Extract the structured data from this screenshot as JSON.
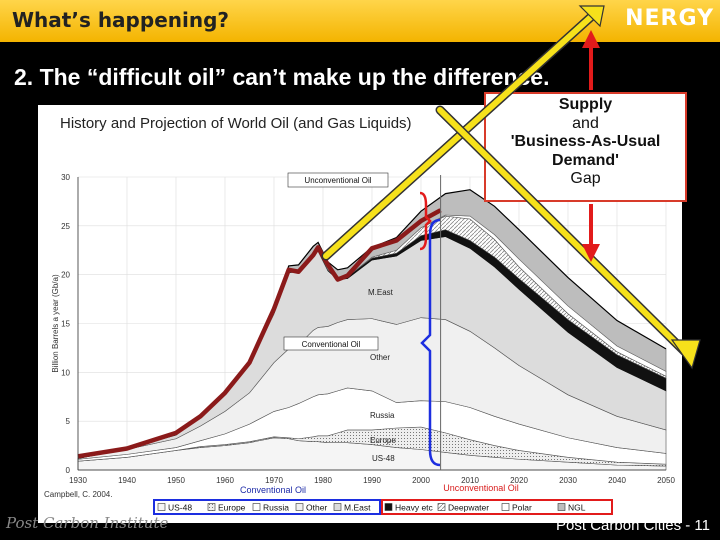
{
  "header": {
    "title": "What’s happening?",
    "brand": "NERGY"
  },
  "slide": {
    "subtitle": "2. The “difficult oil” can’t make up the difference."
  },
  "callout": {
    "line1": "Supply",
    "line2": "and",
    "line3": "'Business-As-Usual",
    "line4": "Demand'",
    "line5": "Gap"
  },
  "footer": {
    "left": "Post Carbon Institute",
    "right": "Post Carbon Cities - 11"
  },
  "chart_data": {
    "type": "area",
    "title": "History and Projection of World Oil (and Gas Liquids)",
    "ylabel": "Billion Barrels a year (Gb/a)",
    "xlim": [
      1930,
      2050
    ],
    "ylim": [
      0,
      30
    ],
    "x_ticks": [
      1930,
      1940,
      1950,
      1960,
      1970,
      1980,
      1990,
      2000,
      2010,
      2020,
      2030,
      2040,
      2050
    ],
    "y_ticks": [
      0,
      5,
      10,
      15,
      20,
      25,
      30
    ],
    "source": "Campbell, C. 2004.",
    "annotations": {
      "unconventional_top": "Unconventional Oil",
      "conventional": "Conventional Oil",
      "bottom_conventional": "Conventional Oil",
      "bottom_unconventional": "Unconventional Oil",
      "region_labels": [
        "M.East",
        "Other",
        "Russia",
        "Europe",
        "US-48"
      ]
    },
    "legend": [
      "US-48",
      "Europe",
      "Russia",
      "Other",
      "M.East",
      "Heavy etc",
      "Deepwater",
      "Polar",
      "NGL"
    ],
    "x": [
      1930,
      1940,
      1950,
      1955,
      1960,
      1965,
      1970,
      1973,
      1975,
      1978,
      1979,
      1981,
      1983,
      1985,
      1990,
      1995,
      2000,
      2005,
      2010,
      2015,
      2020,
      2030,
      2040,
      2050
    ],
    "series": [
      {
        "name": "US-48",
        "values": [
          0.9,
          1.3,
          2.0,
          2.3,
          2.5,
          2.8,
          3.3,
          3.2,
          3.0,
          2.9,
          2.9,
          2.8,
          2.8,
          2.8,
          2.6,
          2.3,
          2.1,
          1.8,
          1.5,
          1.3,
          1.1,
          0.8,
          0.5,
          0.4
        ]
      },
      {
        "name": "Europe",
        "values": [
          0.0,
          0.0,
          0.0,
          0.1,
          0.1,
          0.1,
          0.1,
          0.1,
          0.2,
          0.5,
          0.6,
          0.7,
          1.0,
          1.3,
          1.5,
          2.0,
          2.3,
          2.0,
          1.6,
          1.2,
          0.9,
          0.5,
          0.3,
          0.2
        ]
      },
      {
        "name": "Russia",
        "values": [
          0.2,
          0.3,
          0.3,
          0.6,
          1.1,
          1.8,
          2.6,
          3.1,
          3.6,
          4.1,
          4.2,
          4.3,
          4.3,
          4.3,
          4.0,
          2.6,
          2.7,
          3.2,
          3.3,
          3.0,
          2.7,
          2.0,
          1.5,
          1.1
        ]
      },
      {
        "name": "Other",
        "values": [
          0.1,
          0.5,
          0.9,
          1.5,
          2.3,
          3.2,
          5.0,
          6.0,
          6.0,
          6.8,
          6.9,
          6.9,
          7.0,
          7.0,
          7.4,
          8.0,
          8.5,
          8.4,
          7.8,
          7.0,
          6.0,
          4.4,
          3.2,
          2.4
        ]
      },
      {
        "name": "M.East",
        "values": [
          0.0,
          0.1,
          0.4,
          1.0,
          1.9,
          3.0,
          5.0,
          7.8,
          7.5,
          7.7,
          7.8,
          5.7,
          4.4,
          4.2,
          6.0,
          7.0,
          7.9,
          8.5,
          8.5,
          8.3,
          7.8,
          6.4,
          5.0,
          4.0
        ]
      },
      {
        "name": "Heavy etc",
        "values": [
          0.0,
          0.0,
          0.0,
          0.0,
          0.0,
          0.0,
          0.0,
          0.1,
          0.1,
          0.1,
          0.1,
          0.1,
          0.1,
          0.2,
          0.2,
          0.3,
          0.5,
          0.7,
          0.8,
          1.0,
          1.1,
          1.3,
          1.3,
          1.3
        ]
      },
      {
        "name": "Deepwater",
        "values": [
          0.0,
          0.0,
          0.0,
          0.0,
          0.0,
          0.0,
          0.0,
          0.0,
          0.0,
          0.0,
          0.0,
          0.0,
          0.0,
          0.0,
          0.1,
          0.3,
          0.8,
          1.4,
          2.2,
          1.8,
          1.2,
          0.6,
          0.3,
          0.2
        ]
      },
      {
        "name": "Polar",
        "values": [
          0.0,
          0.0,
          0.0,
          0.0,
          0.0,
          0.0,
          0.0,
          0.0,
          0.0,
          0.0,
          0.0,
          0.0,
          0.0,
          0.0,
          0.0,
          0.0,
          0.0,
          0.1,
          0.3,
          0.5,
          0.8,
          0.8,
          0.6,
          0.5
        ]
      },
      {
        "name": "NGL",
        "values": [
          0.0,
          0.0,
          0.0,
          0.0,
          0.1,
          0.2,
          0.5,
          0.6,
          0.6,
          0.8,
          0.8,
          0.8,
          0.9,
          0.9,
          1.0,
          1.3,
          1.7,
          2.2,
          2.7,
          2.9,
          3.0,
          2.9,
          2.6,
          2.3
        ]
      }
    ],
    "history_series": {
      "x": [
        1930,
        1940,
        1950,
        1955,
        1960,
        1965,
        1970,
        1973,
        1975,
        1978,
        1979,
        1981,
        1983,
        1985,
        1990,
        1995,
        2000,
        2004
      ],
      "values": [
        1.4,
        2.2,
        3.8,
        5.5,
        7.9,
        11.0,
        16.5,
        20.5,
        20.3,
        22.0,
        22.8,
        21.0,
        19.5,
        19.9,
        22.7,
        23.5,
        25.5,
        26.6
      ]
    }
  }
}
